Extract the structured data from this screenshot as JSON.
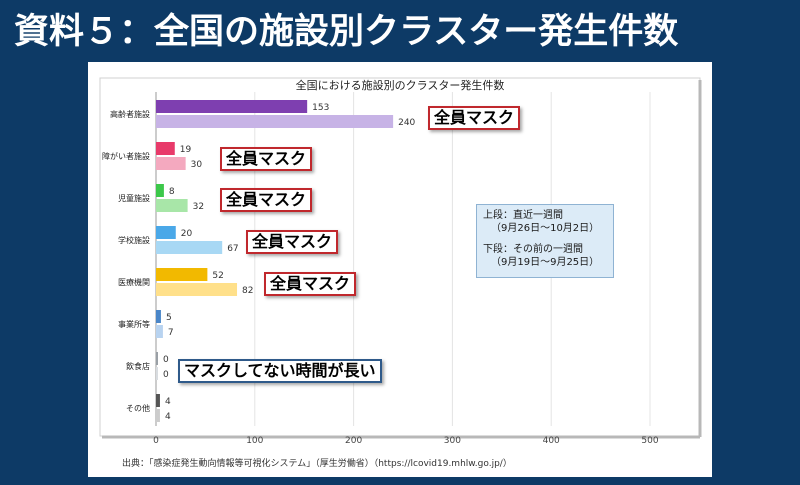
{
  "slide": {
    "title": "資料５：全国の施設別クラスター発生件数"
  },
  "chart_data": {
    "type": "bar",
    "orientation": "horizontal",
    "title": "全国における施設別のクラスター発生件数",
    "categories": [
      "高齢者施設",
      "障がい者施設",
      "児童施設",
      "学校施設",
      "医療機関",
      "事業所等",
      "飲食店",
      "その他"
    ],
    "series": [
      {
        "name": "上段：直近一週間",
        "values": [
          153,
          19,
          8,
          20,
          52,
          5,
          0,
          4
        ]
      },
      {
        "name": "下段：その前の一週間",
        "values": [
          240,
          30,
          32,
          67,
          82,
          7,
          0,
          4
        ]
      }
    ],
    "xlim": [
      0,
      500
    ],
    "xticks": [
      0,
      100,
      200,
      300,
      400,
      500
    ],
    "colors": {
      "top": [
        "#7e3fb0",
        "#e83a6a",
        "#3cc84a",
        "#4aa8e8",
        "#f2b900",
        "#4a86c8",
        "#9aa0a6",
        "#555555"
      ],
      "bottom": [
        "#c7b3e6",
        "#f4a9bf",
        "#a8e6a8",
        "#a8d8f4",
        "#ffe08a",
        "#b8d3f0",
        "#d8dce0",
        "#cccccc"
      ]
    },
    "legend": {
      "line1": "上段：直近一週間",
      "line2": "（9月26日〜10月2日）",
      "line3": "下段：その前の一週間",
      "line4": "（9月19日〜9月25日）"
    }
  },
  "annotations": {
    "mask": "全員マスク",
    "no_mask": "マスクしてない時間が長い"
  },
  "source": "出典：「感染症発生動向情報等可視化システム」（厚生労働省）（https://lcovid19.mhlw.go.jp/）"
}
